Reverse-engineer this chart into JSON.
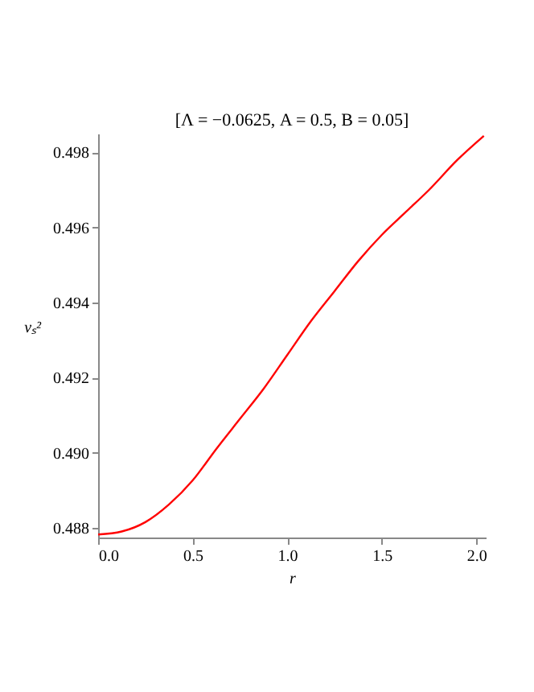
{
  "chart_data": {
    "type": "line",
    "title": "[Λ = −0.0625, A = 0.5, B = 0.05]",
    "xlabel": "r",
    "ylabel": "vₛ²",
    "x": [
      0,
      0.125,
      0.25,
      0.375,
      0.5,
      0.625,
      0.75,
      0.875,
      1.0,
      1.125,
      1.25,
      1.375,
      1.5,
      1.625,
      1.75,
      1.9,
      2.04
    ],
    "series": [
      {
        "color": "#ff0000",
        "values": [
          0.48782,
          0.4879,
          0.48815,
          0.48862,
          0.48926,
          0.4901,
          0.4909,
          0.4917,
          0.4926,
          0.4935,
          0.4943,
          0.4951,
          0.4958,
          0.4964,
          0.497,
          0.4978,
          0.49844
        ]
      }
    ],
    "xlim": [
      0,
      2.05
    ],
    "ylim": [
      0.48774,
      0.4985
    ],
    "xticks": [
      {
        "value": 0,
        "label": "0.0"
      },
      0.5,
      {
        "value": 1,
        "label": "1.0"
      },
      1.5,
      {
        "value": 2,
        "label": "2.0"
      }
    ],
    "yticks": [
      0.488,
      {
        "value": 0.49,
        "label": "0.490"
      },
      0.492,
      0.494,
      0.496,
      0.498
    ],
    "grid": false,
    "legend": false,
    "marker": "none",
    "line_style": "solid"
  }
}
